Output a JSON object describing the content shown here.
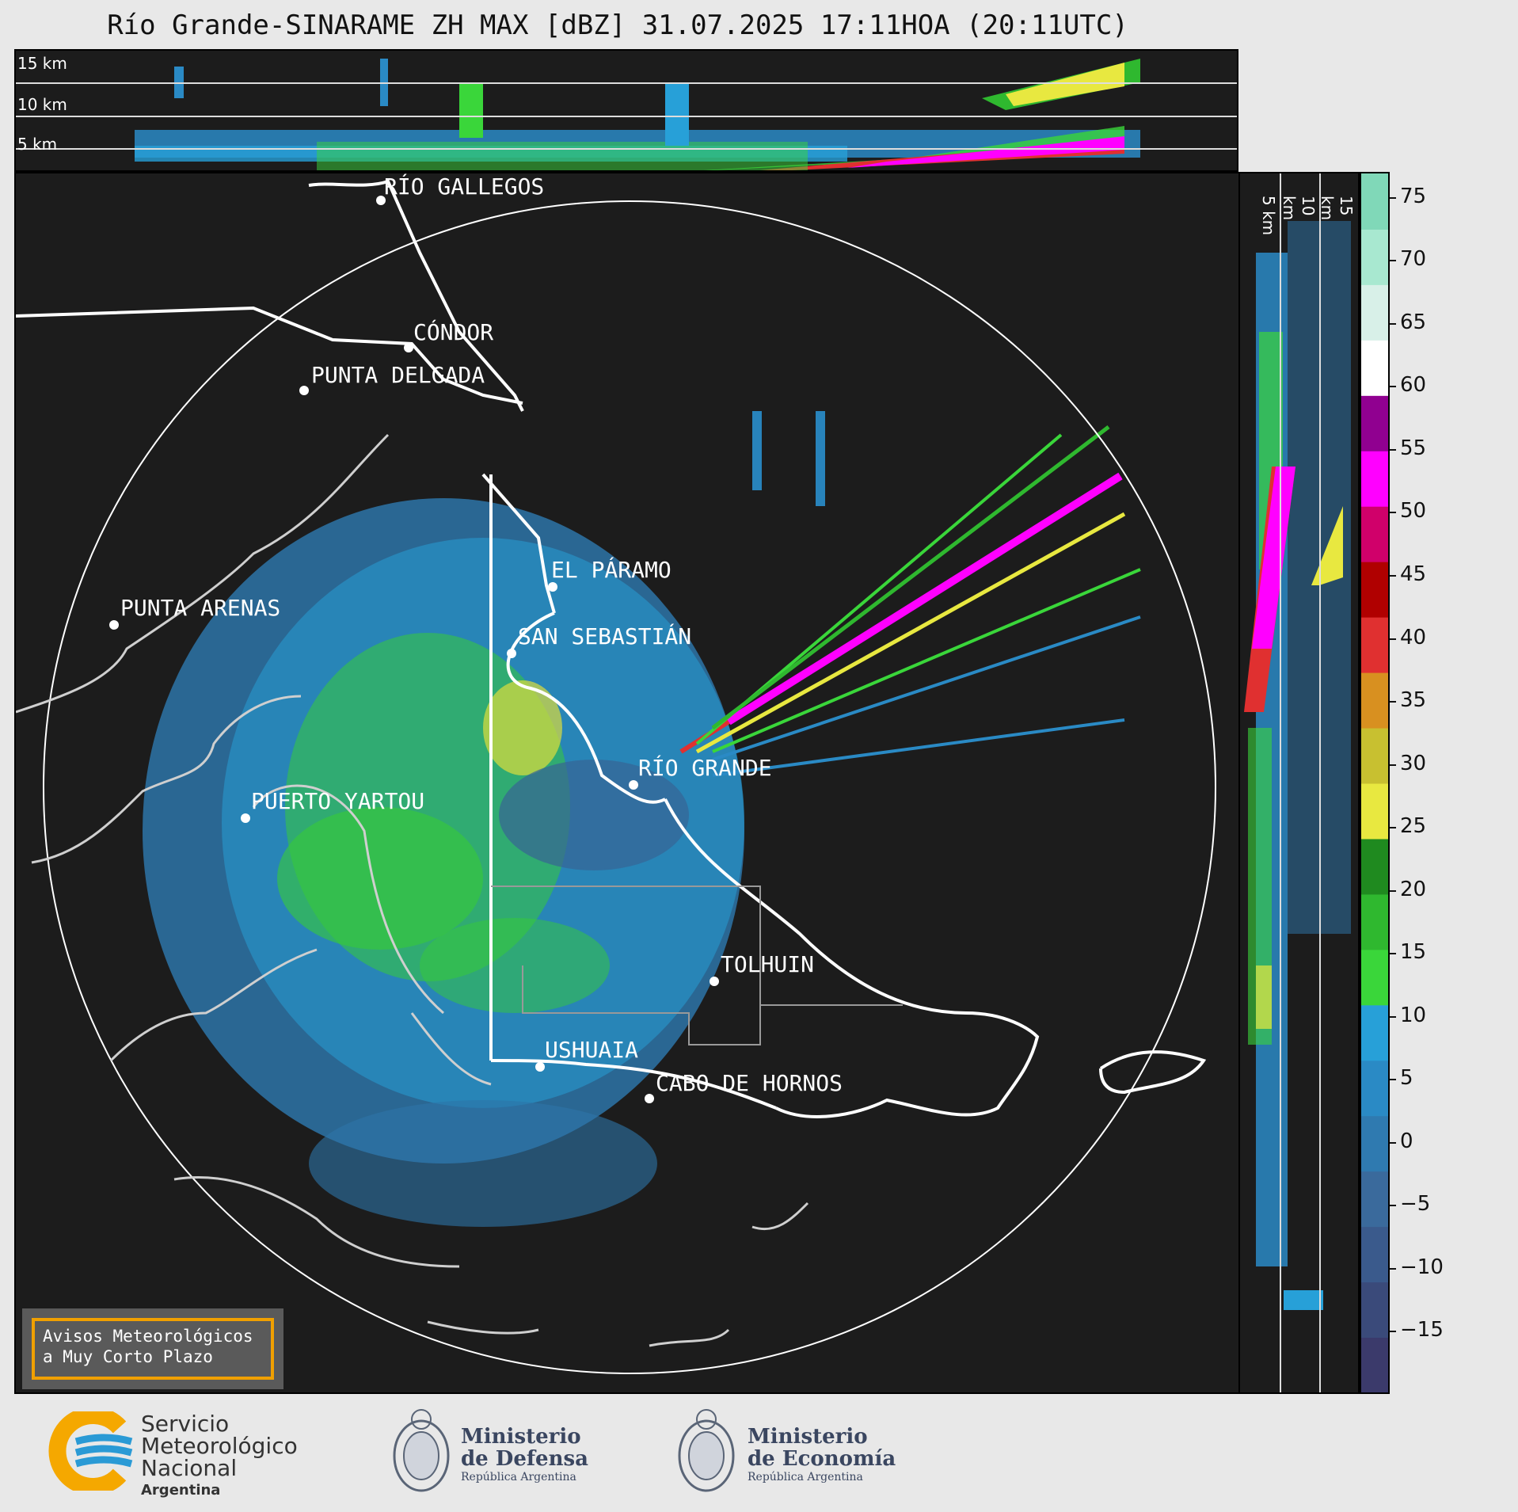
{
  "title": "Río Grande-SINARAME ZH MAX [dBZ] 31.07.2025 17:11HOA (20:11UTC)",
  "height_labels": {
    "top": [
      "15 km",
      "10 km",
      "5 km"
    ],
    "side": [
      "5 km",
      "10 km",
      "15 km"
    ]
  },
  "cities": [
    {
      "name": "RÍO GALLEGOS"
    },
    {
      "name": "CÓNDOR"
    },
    {
      "name": "PUNTA DELGADA"
    },
    {
      "name": "PUNTA ARENAS"
    },
    {
      "name": "EL PÁRAMO"
    },
    {
      "name": "SAN SEBASTIÁN"
    },
    {
      "name": "RÍO GRANDE"
    },
    {
      "name": "PUERTO YARTOU"
    },
    {
      "name": "TOLHUIN"
    },
    {
      "name": "USHUAIA"
    },
    {
      "name": "CABO DE HORNOS"
    }
  ],
  "colorbar": {
    "ticks": [
      "75",
      "70",
      "65",
      "60",
      "55",
      "50",
      "45",
      "40",
      "35",
      "30",
      "25",
      "20",
      "15",
      "10",
      "5",
      "0",
      "−5",
      "−10",
      "−15"
    ],
    "colors": [
      "#3b3a6b",
      "#3a4a7a",
      "#3a5a8c",
      "#3a6a9c",
      "#2f7ab0",
      "#2a8ac5",
      "#27a0d8",
      "#3ad63a",
      "#2fb82f",
      "#1f8a1f",
      "#e8e840",
      "#c8c030",
      "#d89020",
      "#e03030",
      "#b00000",
      "#d0006a",
      "#ff00ff",
      "#900090",
      "#ffffff",
      "#d8f0e8",
      "#a8e8d0",
      "#80d8b8"
    ],
    "range": [
      -20,
      77
    ]
  },
  "alert": {
    "line1": "Avisos Meteorológicos",
    "line2": "a Muy Corto Plazo"
  },
  "logos": {
    "smn": {
      "line1": "Servicio",
      "line2": "Meteorológico",
      "line3": "Nacional",
      "line4": "Argentina"
    },
    "defensa": {
      "line1": "Ministerio",
      "line2": "de Defensa",
      "line3": "República Argentina"
    },
    "economia": {
      "line1": "Ministerio",
      "line2": "de Economía",
      "line3": "República Argentina"
    }
  }
}
